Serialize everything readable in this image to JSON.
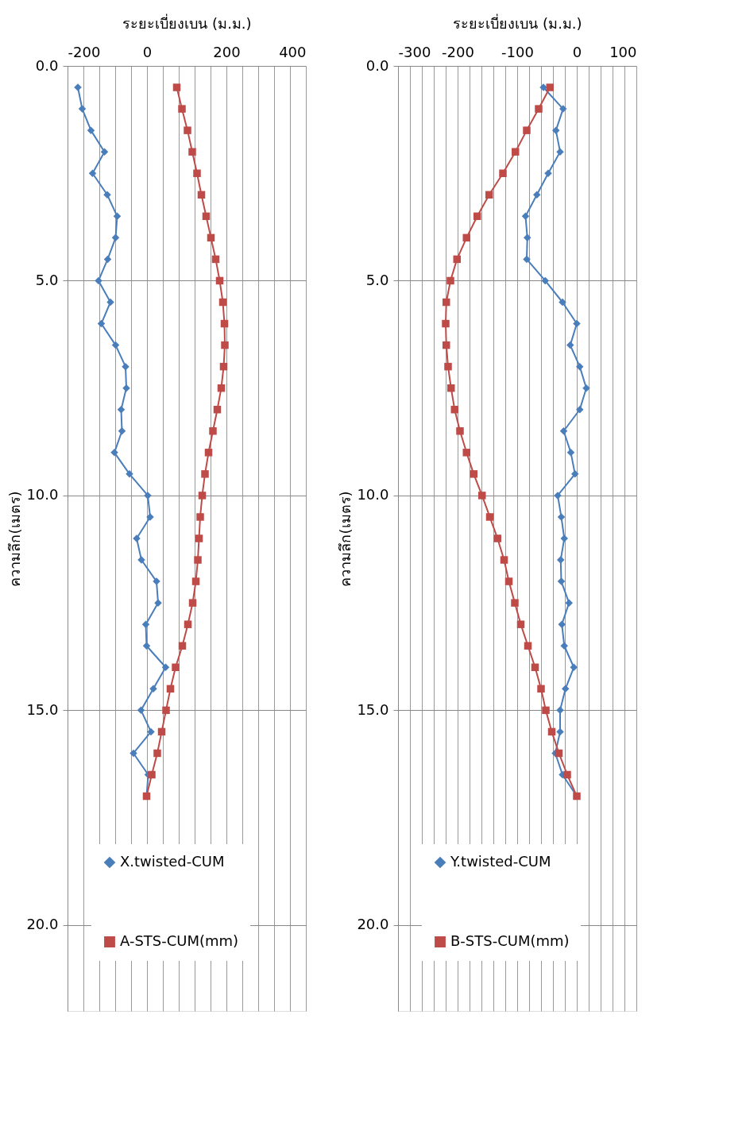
{
  "chart_data": [
    {
      "type": "line",
      "xlabel": "ระยะเบี่ยงเบน (ม.ม.)",
      "ylabel": "ความลึก(เมตร)",
      "x": [
        0.5,
        1.0,
        1.5,
        2.0,
        2.5,
        3.0,
        3.5,
        4.0,
        4.5,
        5.0,
        5.5,
        6.0,
        6.5,
        7.0,
        7.5,
        8.0,
        8.5,
        9.0,
        9.5,
        10.0,
        10.5,
        11.0,
        11.5,
        12.0,
        12.5,
        13.0,
        13.5,
        14.0,
        14.5,
        15.0,
        15.5,
        16.0,
        16.5,
        17.0
      ],
      "series": [
        {
          "name": "X.twisted-CUM",
          "color": "#4a7ebb",
          "marker": "diamond",
          "values": [
            -174,
            -163,
            -141,
            -107,
            -137,
            -100,
            -75,
            -79,
            -99,
            -122,
            -92,
            -115,
            -79,
            -54,
            -52,
            -65,
            -63,
            -82,
            -44,
            2,
            8,
            -26,
            -14,
            24,
            28,
            -3,
            -1,
            47,
            16,
            -15,
            10,
            -34,
            3,
            -1
          ]
        },
        {
          "name": "A-STS-CUM(mm)",
          "color": "#be4b48",
          "marker": "square",
          "values": [
            75,
            88,
            102,
            114,
            126,
            137,
            149,
            161,
            173,
            183,
            191,
            195,
            196,
            193,
            187,
            177,
            166,
            155,
            146,
            139,
            134,
            131,
            128,
            123,
            115,
            103,
            89,
            72,
            59,
            48,
            37,
            26,
            12,
            -1
          ]
        }
      ],
      "xlim": [
        -200,
        400
      ],
      "xticks": [
        -200,
        {
          "value": -160,
          "label": null
        },
        {
          "value": -120,
          "label": null
        },
        {
          "value": -80,
          "label": null
        },
        {
          "value": -40,
          "label": null
        },
        0,
        {
          "value": 40,
          "label": null
        },
        {
          "value": 80,
          "label": null
        },
        {
          "value": 120,
          "label": null
        },
        {
          "value": 160,
          "label": null
        },
        200,
        {
          "value": 240,
          "label": null
        },
        {
          "value": 280,
          "label": null
        },
        {
          "value": 320,
          "label": null
        },
        {
          "value": 360,
          "label": null
        },
        400
      ],
      "ylim": [
        22,
        0
      ],
      "yticks": [
        {
          "value": 0,
          "label": "0.0"
        },
        {
          "value": 5,
          "label": "5.0"
        },
        {
          "value": 10,
          "label": "10.0"
        },
        {
          "value": 15,
          "label": "15.0"
        },
        {
          "value": 20,
          "label": "20.0"
        }
      ],
      "grid": true,
      "legend": "bottom",
      "line_style": "solid",
      "orientation": "horizontal"
    },
    {
      "type": "line",
      "xlabel": "ระยะเบี่ยงเบน (ม.ม.)",
      "ylabel": "ความลึก(เมตร)",
      "x": [
        0.5,
        1.0,
        1.5,
        2.0,
        2.5,
        3.0,
        3.5,
        4.0,
        4.5,
        5.0,
        5.5,
        6.0,
        6.5,
        7.0,
        7.5,
        8.0,
        8.5,
        9.0,
        9.5,
        10.0,
        10.5,
        11.0,
        11.5,
        12.0,
        12.5,
        13.0,
        13.5,
        14.0,
        14.5,
        15.0,
        15.5,
        16.0,
        16.5,
        17.0
      ],
      "series": [
        {
          "name": "Y.twisted-CUM",
          "color": "#4a7ebb",
          "marker": "diamond",
          "values": [
            -56,
            -23,
            -35,
            -28,
            -48,
            -67,
            -86,
            -83,
            -84,
            -53,
            -24,
            0,
            -11,
            5,
            16,
            5,
            -22,
            -10,
            -3,
            -32,
            -26,
            -21,
            -27,
            -26,
            -13,
            -25,
            -21,
            -5,
            -19,
            -28,
            -28,
            -36,
            -24,
            0
          ]
        },
        {
          "name": "B-STS-CUM(mm)",
          "color": "#be4b48",
          "marker": "square",
          "values": [
            -45,
            -64,
            -84,
            -103,
            -124,
            -147,
            -167,
            -185,
            -201,
            -212,
            -219,
            -220,
            -219,
            -216,
            -211,
            -205,
            -196,
            -185,
            -173,
            -159,
            -146,
            -133,
            -122,
            -114,
            -104,
            -94,
            -82,
            -70,
            -60,
            -52,
            -42,
            -30,
            -16,
            0
          ]
        }
      ],
      "xlim": [
        -300,
        100
      ],
      "xticks": [
        -300,
        {
          "value": -280,
          "label": null
        },
        {
          "value": -260,
          "label": null
        },
        {
          "value": -240,
          "label": null
        },
        {
          "value": -220,
          "label": null
        },
        -200,
        {
          "value": -180,
          "label": null
        },
        {
          "value": -160,
          "label": null
        },
        {
          "value": -140,
          "label": null
        },
        {
          "value": -120,
          "label": null
        },
        -100,
        {
          "value": -80,
          "label": null
        },
        {
          "value": -60,
          "label": null
        },
        {
          "value": -40,
          "label": null
        },
        {
          "value": -20,
          "label": null
        },
        0,
        {
          "value": 20,
          "label": null
        },
        {
          "value": 40,
          "label": null
        },
        {
          "value": 60,
          "label": null
        },
        {
          "value": 80,
          "label": null
        },
        100
      ],
      "ylim": [
        22,
        0
      ],
      "yticks": [
        {
          "value": 0,
          "label": "0.0"
        },
        {
          "value": 5,
          "label": "5.0"
        },
        {
          "value": 10,
          "label": "10.0"
        },
        {
          "value": 15,
          "label": "15.0"
        },
        {
          "value": 20,
          "label": "20.0"
        }
      ],
      "grid": true,
      "legend": "bottom",
      "line_style": "solid",
      "orientation": "horizontal"
    }
  ]
}
